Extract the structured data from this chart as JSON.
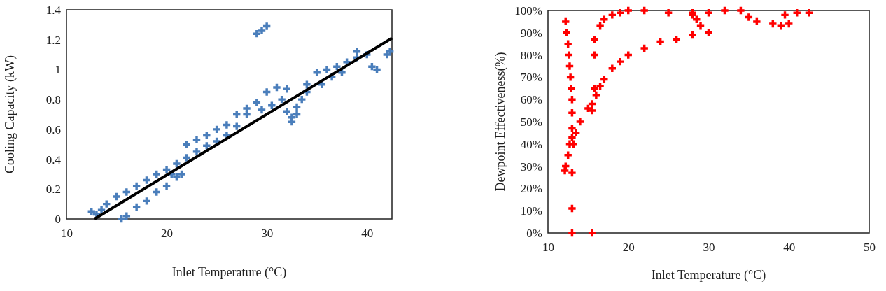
{
  "chart_data": [
    {
      "type": "scatter",
      "xlabel": "Inlet Temperature (°C)",
      "ylabel": "Cooling Capacity (kW)",
      "xlim": [
        10,
        42.5
      ],
      "xticks": [
        10,
        20,
        30,
        40
      ],
      "ylim": [
        0,
        1.4
      ],
      "yticks": [
        0,
        0.2,
        0.4,
        0.6,
        0.8,
        1,
        1.2,
        1.4
      ],
      "grid": false,
      "series": [
        {
          "color": "#4a7ebb",
          "marker": "cross",
          "x": [
            12.5,
            13,
            13.5,
            14,
            15,
            16,
            17,
            18,
            19,
            20,
            21,
            22,
            23,
            24,
            25,
            26,
            27,
            28,
            29,
            30,
            31,
            32,
            31.5,
            30.5,
            29.5,
            32,
            32.5,
            33,
            33.5,
            34,
            33,
            32.5,
            34,
            35,
            36,
            37,
            38,
            39,
            40,
            41,
            42,
            42.3,
            40.5,
            39,
            15.5,
            16,
            17,
            18,
            19,
            20,
            21,
            21.5,
            20.5,
            22,
            23,
            24,
            25,
            26,
            27,
            28,
            29,
            29.5,
            30,
            35.5,
            36.5,
            37.5
          ],
          "values": [
            0.05,
            0.03,
            0.06,
            0.1,
            0.15,
            0.18,
            0.22,
            0.26,
            0.3,
            0.33,
            0.37,
            0.41,
            0.45,
            0.49,
            0.52,
            0.56,
            0.62,
            0.7,
            0.78,
            0.85,
            0.88,
            0.87,
            0.8,
            0.76,
            0.73,
            0.72,
            0.65,
            0.7,
            0.8,
            0.85,
            0.75,
            0.68,
            0.9,
            0.98,
            1,
            1.02,
            1.05,
            1.12,
            1.1,
            1,
            1.1,
            1.12,
            1.02,
            1.08,
            0,
            0.02,
            0.08,
            0.12,
            0.18,
            0.22,
            0.28,
            0.3,
            0.3,
            0.5,
            0.53,
            0.56,
            0.6,
            0.63,
            0.7,
            0.74,
            1.24,
            1.26,
            1.29,
            0.9,
            0.95,
            0.98
          ]
        },
        {
          "type": "line",
          "marker": "none",
          "color": "#000000",
          "x": [
            12.8,
            42.5
          ],
          "values": [
            0,
            1.21
          ]
        }
      ]
    },
    {
      "type": "scatter",
      "xlabel": "Inlet Temperature (°C)",
      "ylabel": "Dewpoint Effectiveness(%)",
      "xlim": [
        10,
        50
      ],
      "xticks": [
        10,
        20,
        30,
        40,
        50
      ],
      "ylim": [
        0,
        100
      ],
      "yticks": [
        {
          "value": 0,
          "label": "0%"
        },
        {
          "value": 10,
          "label": "10%"
        },
        {
          "value": 20,
          "label": "20%"
        },
        {
          "value": 30,
          "label": "30%"
        },
        {
          "value": 40,
          "label": "40%"
        },
        {
          "value": 50,
          "label": "50%"
        },
        {
          "value": 60,
          "label": "60%"
        },
        {
          "value": 70,
          "label": "70%"
        },
        {
          "value": 80,
          "label": "80%"
        },
        {
          "value": 90,
          "label": "90%"
        },
        {
          "value": 100,
          "label": "100%"
        }
      ],
      "grid": false,
      "marker": "cross",
      "series": [
        {
          "color": "#ff0000",
          "x": [
            12.2,
            12.3,
            12.5,
            12.6,
            12.7,
            12.8,
            12.9,
            13,
            13,
            13,
            13,
            12.7,
            12.5,
            12.2,
            12.1,
            13,
            13,
            13,
            15.5,
            13.2,
            13.5,
            14,
            15,
            15.5,
            16,
            16.5,
            17,
            18,
            19,
            20,
            22,
            24,
            26,
            28,
            30,
            29,
            28.5,
            28,
            15.8,
            15.8,
            16.5,
            17,
            18,
            19,
            20,
            22,
            25,
            28,
            30,
            32,
            34,
            35,
            36,
            38,
            39,
            40,
            39.5,
            41,
            42.5,
            15.8,
            15.5
          ],
          "values": [
            95,
            90,
            85,
            80,
            75,
            70,
            65,
            60,
            54,
            47,
            43,
            40,
            35,
            30,
            28,
            27,
            11,
            0,
            0,
            40,
            45,
            50,
            56,
            58,
            62,
            66,
            69,
            74,
            77,
            80,
            83,
            86,
            87,
            89,
            90,
            93,
            96,
            98,
            80,
            87,
            93,
            96,
            98,
            99,
            100,
            100,
            99,
            99,
            99,
            100,
            100,
            97,
            95,
            94,
            93,
            94,
            98,
            99,
            99,
            65,
            55
          ]
        }
      ]
    }
  ]
}
